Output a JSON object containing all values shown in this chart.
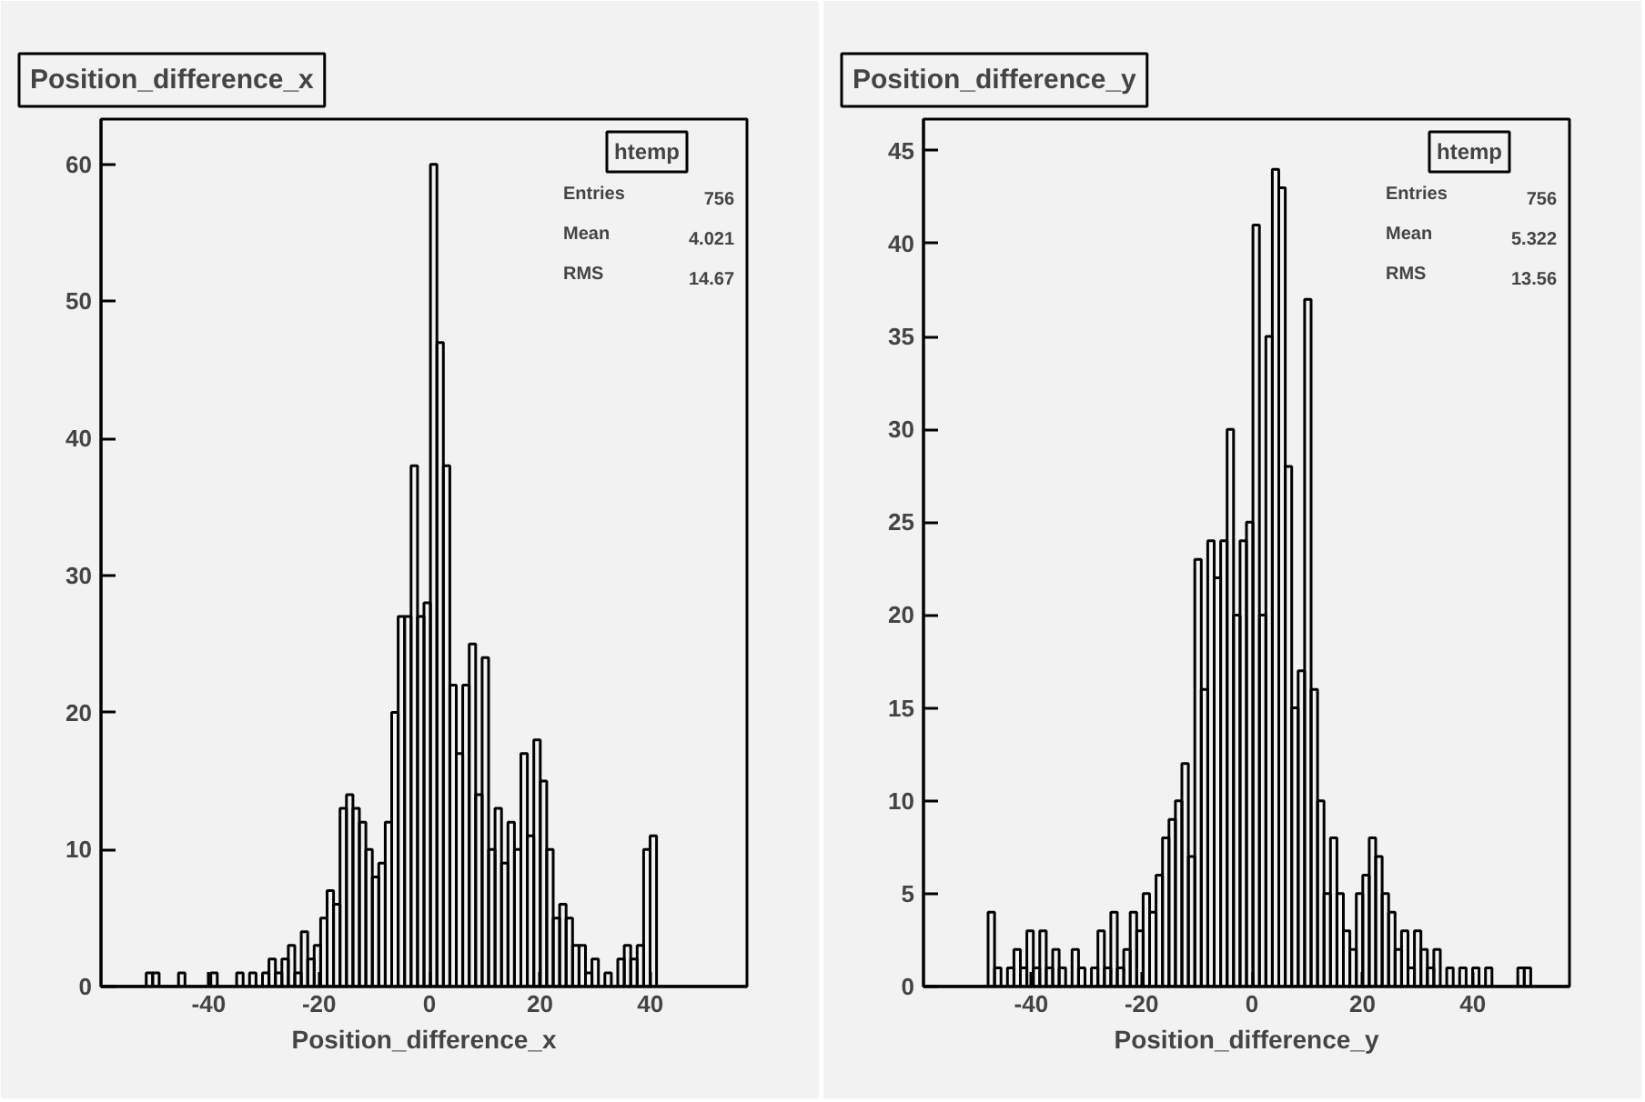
{
  "chart_data": [
    {
      "type": "histogram",
      "title": "Position_difference_x",
      "xlabel": "Position_difference_x",
      "color": "#000000",
      "grid": false,
      "xlim": [
        -59.5,
        57.5
      ],
      "xticks": [
        -40,
        -20,
        0,
        20,
        40
      ],
      "ylim": [
        0,
        63.3
      ],
      "yticks": [
        0,
        10,
        20,
        30,
        40,
        50,
        60
      ],
      "annotations": [
        "htemp",
        "Entries",
        "756",
        "Mean",
        "4.021",
        "RMS",
        "14.67"
      ],
      "bins": [
        -59.5,
        -58.33,
        -57.16,
        -55.99,
        -54.82,
        -53.65,
        -52.48,
        -51.31,
        -50.14,
        -48.97,
        -47.8,
        -46.63,
        -45.46,
        -44.29,
        -43.12,
        -41.95,
        -40.78,
        -39.61,
        -38.44,
        -37.27,
        -36.1,
        -34.93,
        -33.76,
        -32.59,
        -31.42,
        -30.25,
        -29.08,
        -27.91,
        -26.74,
        -25.57,
        -24.4,
        -23.23,
        -22.06,
        -20.89,
        -19.72,
        -18.55,
        -17.38,
        -16.21,
        -15.04,
        -13.87,
        -12.7,
        -11.53,
        -10.36,
        -9.19,
        -8.02,
        -6.85,
        -5.68,
        -4.51,
        -3.34,
        -2.17,
        -1.0,
        0.17,
        1.34,
        2.51,
        3.68,
        4.85,
        6.02,
        7.19,
        8.36,
        9.53,
        10.7,
        11.87,
        13.04,
        14.21,
        15.38,
        16.55,
        17.72,
        18.89,
        20.06,
        21.23,
        22.4,
        23.57,
        24.74,
        25.91,
        27.08,
        28.25,
        29.42,
        30.59,
        31.76,
        32.93,
        34.1,
        35.27,
        36.44,
        37.61,
        38.78,
        39.95,
        41.12,
        42.29,
        43.46,
        44.63,
        45.8,
        46.97,
        48.14,
        49.31,
        50.48,
        51.65,
        52.82,
        53.99,
        55.16,
        56.33,
        57.5
      ],
      "values": [
        0,
        0,
        0,
        0,
        0,
        0,
        0,
        1,
        1,
        0,
        0,
        0,
        1,
        0,
        0,
        0,
        0,
        1,
        0,
        0,
        0,
        1,
        0,
        1,
        0,
        1,
        2,
        1,
        2,
        3,
        1,
        4,
        2,
        3,
        5,
        7,
        6,
        13,
        14,
        13,
        12,
        10,
        8,
        9,
        12,
        20,
        27,
        27,
        38,
        27,
        28,
        60,
        47,
        38,
        22,
        17,
        22,
        25,
        14,
        24,
        10,
        13,
        9,
        12,
        10,
        17,
        11,
        18,
        15,
        10,
        5,
        6,
        5,
        3,
        3,
        1,
        2,
        0,
        1,
        0,
        2,
        3,
        2,
        3,
        10,
        11,
        0,
        0,
        0,
        0,
        0,
        0,
        0,
        0,
        0,
        0,
        0,
        0,
        0,
        0
      ]
    },
    {
      "type": "histogram",
      "title": "Position_difference_y",
      "xlabel": "Position_difference_y",
      "color": "#000000",
      "grid": false,
      "xlim": [
        -59.5,
        57.5
      ],
      "xticks": [
        -40,
        -20,
        0,
        20,
        40
      ],
      "ylim": [
        0,
        46.7
      ],
      "yticks": [
        0,
        5,
        10,
        15,
        20,
        25,
        30,
        35,
        40,
        45
      ],
      "annotations": [
        "htemp",
        "Entries",
        "756",
        "Mean",
        "5.322",
        "RMS",
        "13.56"
      ],
      "bins": [
        -59.5,
        -58.33,
        -57.16,
        -55.99,
        -54.82,
        -53.65,
        -52.48,
        -51.31,
        -50.14,
        -48.97,
        -47.8,
        -46.63,
        -45.46,
        -44.29,
        -43.12,
        -41.95,
        -40.78,
        -39.61,
        -38.44,
        -37.27,
        -36.1,
        -34.93,
        -33.76,
        -32.59,
        -31.42,
        -30.25,
        -29.08,
        -27.91,
        -26.74,
        -25.57,
        -24.4,
        -23.23,
        -22.06,
        -20.89,
        -19.72,
        -18.55,
        -17.38,
        -16.21,
        -15.04,
        -13.87,
        -12.7,
        -11.53,
        -10.36,
        -9.19,
        -8.02,
        -6.85,
        -5.68,
        -4.51,
        -3.34,
        -2.17,
        -1.0,
        0.17,
        1.34,
        2.51,
        3.68,
        4.85,
        6.02,
        7.19,
        8.36,
        9.53,
        10.7,
        11.87,
        13.04,
        14.21,
        15.38,
        16.55,
        17.72,
        18.89,
        20.06,
        21.23,
        22.4,
        23.57,
        24.74,
        25.91,
        27.08,
        28.25,
        29.42,
        30.59,
        31.76,
        32.93,
        34.1,
        35.27,
        36.44,
        37.61,
        38.78,
        39.95,
        41.12,
        42.29,
        43.46,
        44.63,
        45.8,
        46.97,
        48.14,
        49.31,
        50.48,
        51.65,
        52.82,
        53.99,
        55.16,
        56.33,
        57.5
      ],
      "values": [
        0,
        0,
        0,
        0,
        0,
        0,
        0,
        0,
        0,
        0,
        4,
        1,
        0,
        1,
        2,
        1,
        3,
        1,
        3,
        1,
        2,
        1,
        0,
        2,
        1,
        0,
        1,
        3,
        1,
        4,
        1,
        2,
        4,
        3,
        5,
        4,
        6,
        8,
        9,
        10,
        12,
        7,
        23,
        16,
        24,
        22,
        24,
        30,
        20,
        24,
        25,
        41,
        20,
        35,
        44,
        43,
        28,
        15,
        17,
        37,
        16,
        10,
        5,
        8,
        5,
        3,
        2,
        5,
        6,
        8,
        7,
        5,
        4,
        2,
        3,
        1,
        3,
        2,
        1,
        2,
        0,
        1,
        0,
        1,
        0,
        1,
        0,
        1,
        0,
        0,
        0,
        0,
        1,
        1,
        0,
        0,
        0,
        0,
        0,
        0
      ]
    }
  ]
}
